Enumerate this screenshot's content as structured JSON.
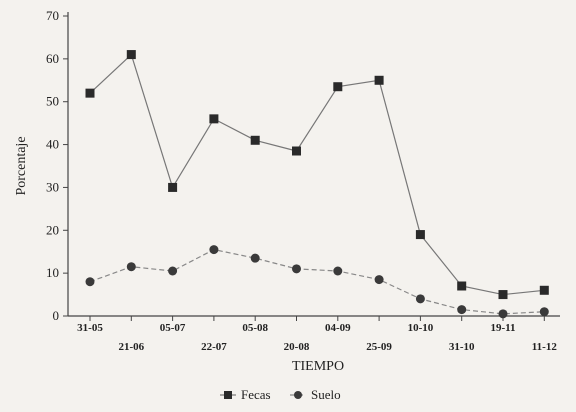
{
  "chart_data": {
    "type": "line",
    "title": "",
    "xlabel": "TIEMPO",
    "ylabel": "Porcentaje",
    "ylim": [
      0,
      70
    ],
    "yticks": [
      0,
      10,
      20,
      30,
      40,
      50,
      60,
      70
    ],
    "categories": [
      "31-05",
      "21-06",
      "05-07",
      "22-07",
      "05-08",
      "20-08",
      "04-09",
      "25-09",
      "10-10",
      "31-10",
      "19-11",
      "11-12"
    ],
    "category_label_rows": [
      0,
      1,
      0,
      1,
      0,
      1,
      0,
      1,
      0,
      1,
      0,
      1
    ],
    "grid": false,
    "legend_position": "bottom-center",
    "series": [
      {
        "name": "Fecas",
        "marker": "square",
        "line": "solid",
        "color": "#2a2a2a",
        "values": [
          52,
          61,
          30,
          46,
          41,
          38.5,
          53.5,
          55,
          19,
          7,
          5,
          6
        ]
      },
      {
        "name": "Suelo",
        "marker": "circle",
        "line": "dashed",
        "color": "#3a3a3a",
        "values": [
          8,
          11.5,
          10.5,
          15.5,
          13.5,
          11,
          10.5,
          8.5,
          4,
          1.5,
          0.5,
          1
        ]
      }
    ]
  }
}
